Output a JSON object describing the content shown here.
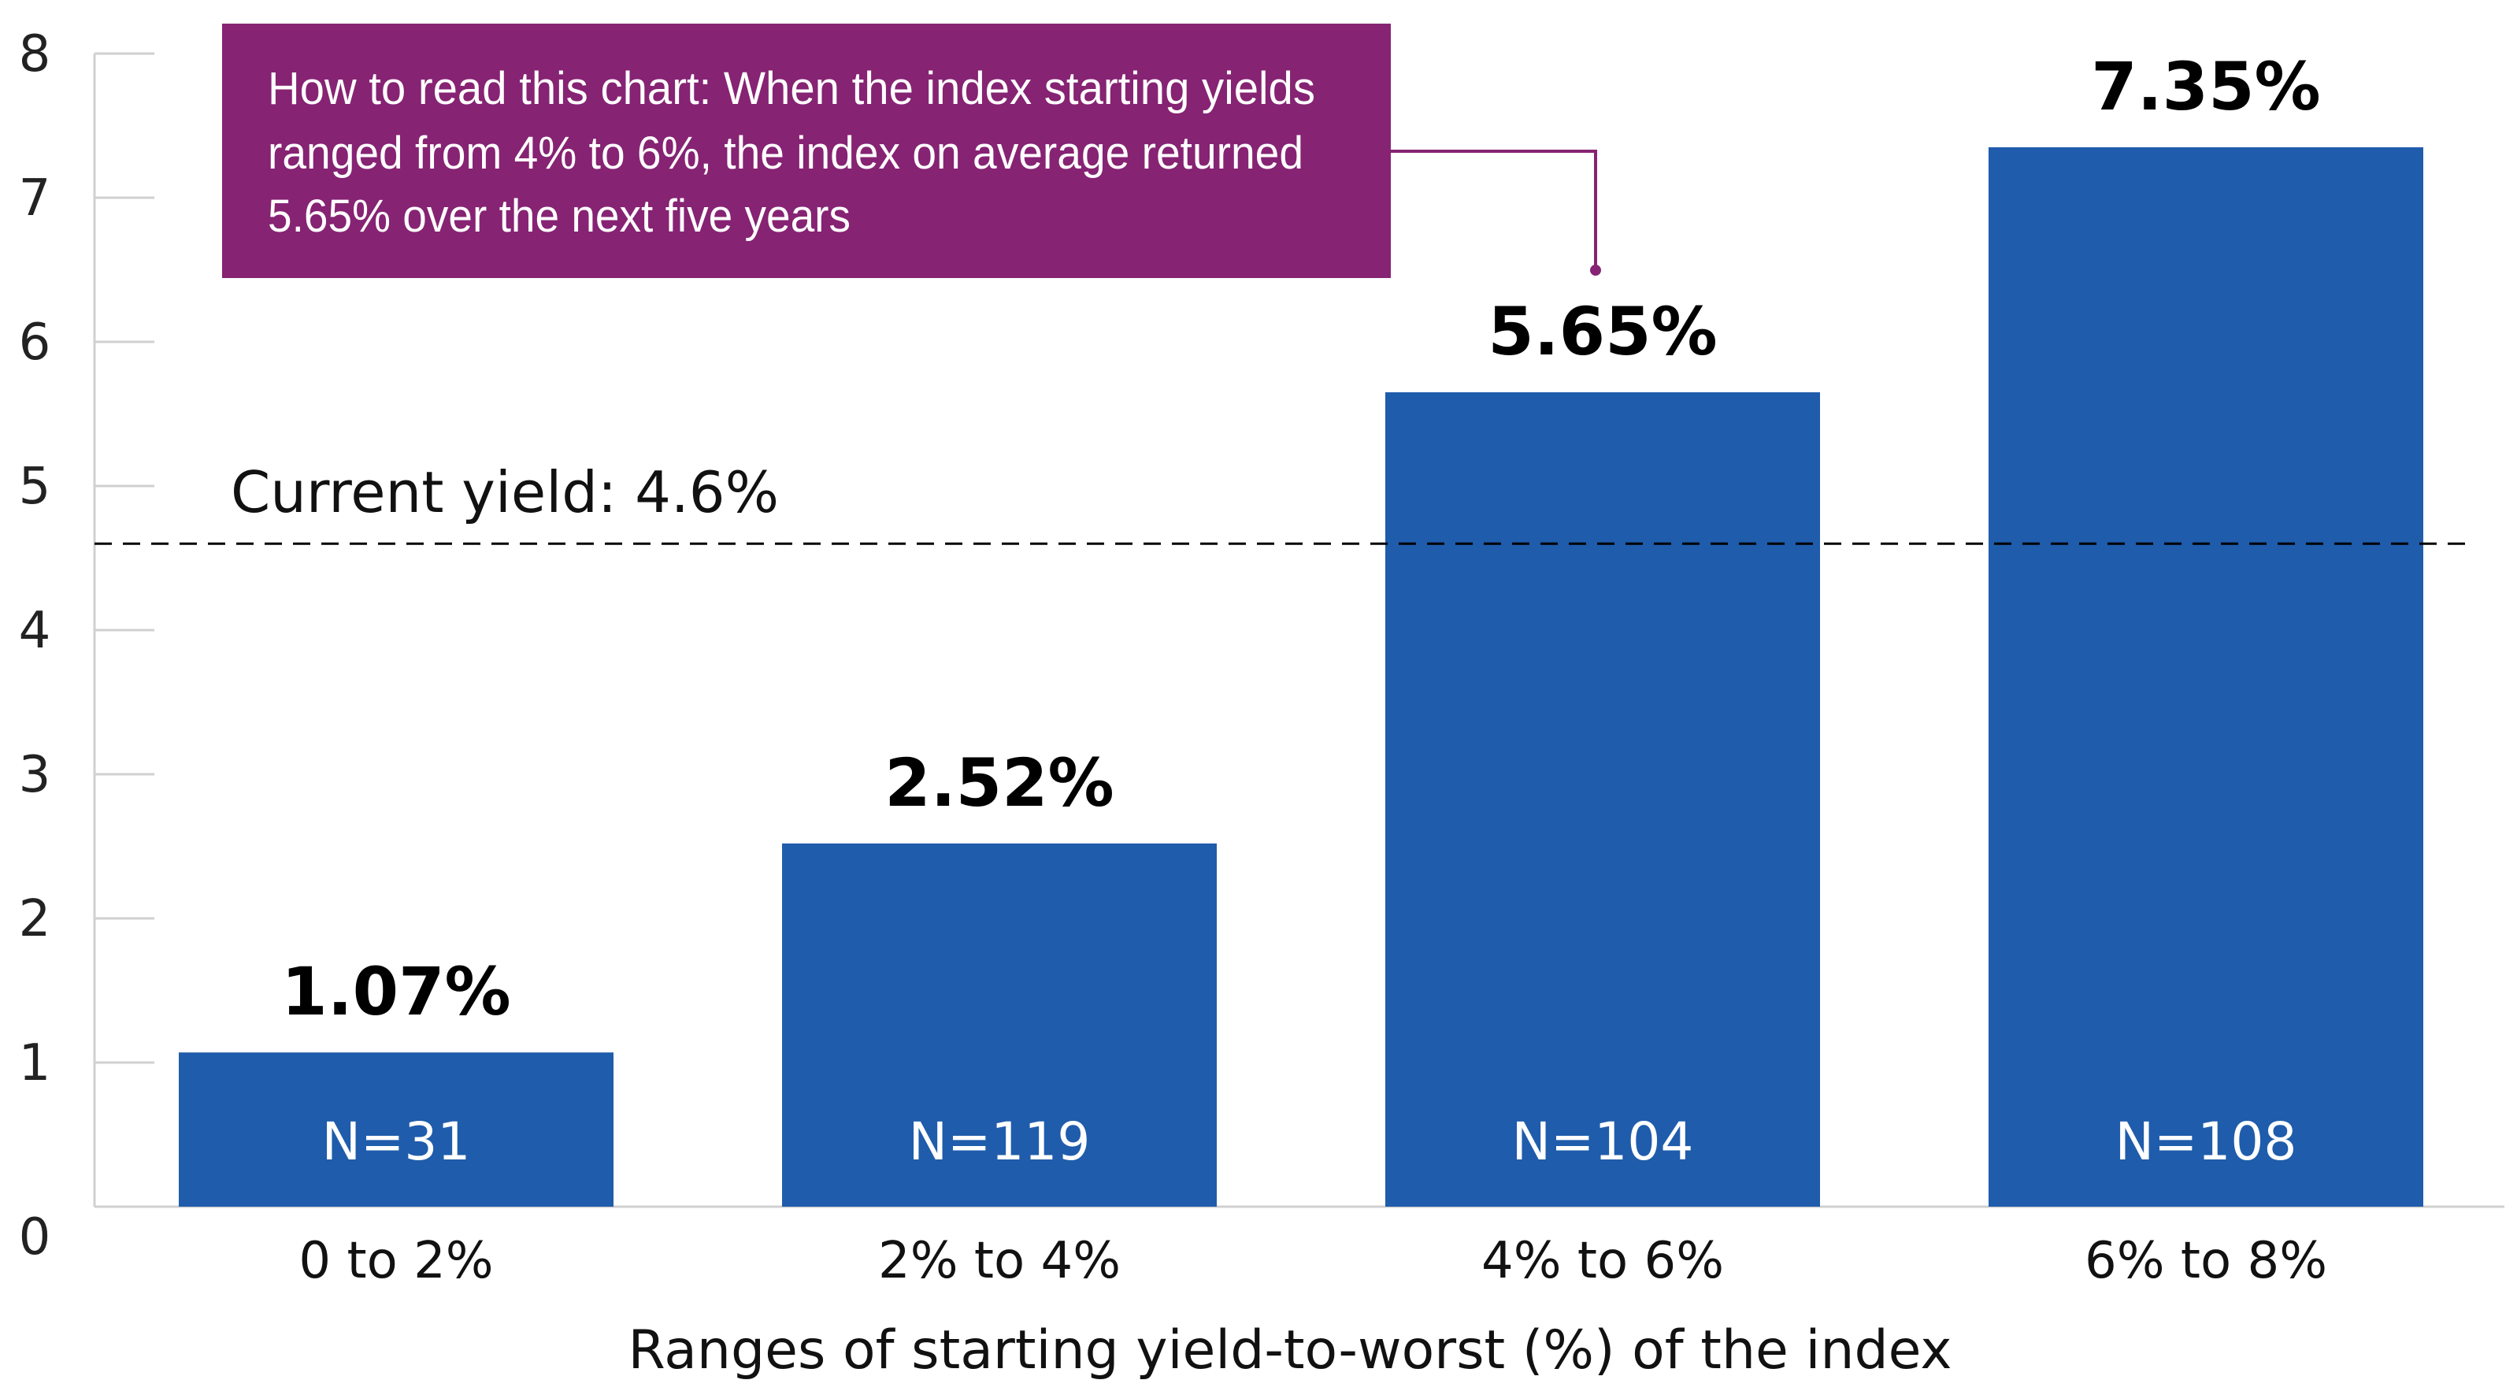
{
  "chart_data": {
    "type": "bar",
    "categories": [
      "0 to 2%",
      "2% to 4%",
      "4% to 6%",
      "6% to 8%"
    ],
    "values": [
      1.07,
      2.52,
      5.65,
      7.35
    ],
    "value_labels": [
      "1.07%",
      "2.52%",
      "5.65%",
      "7.35%"
    ],
    "n_labels": [
      "N=31",
      "N=119",
      "N=104",
      "N=108"
    ],
    "xlabel": "Ranges of starting yield-to-worst (%) of the index",
    "ylabel": "",
    "ylim": [
      0,
      8
    ],
    "yticks": [
      "0",
      "1",
      "2",
      "3",
      "4",
      "5",
      "6",
      "7",
      "8"
    ],
    "grid": false,
    "reference_line": {
      "value": 4.6,
      "label": "Current yield: 4.6%",
      "style": "dashed"
    },
    "annotation": {
      "lines": [
        "How to read this chart: When the index starting yields",
        "ranged from 4% to 6%, the index on average returned",
        "5.65% over the next five years"
      ],
      "target_category": "4% to 6%"
    },
    "colors": {
      "bar": "#1f5cab",
      "annotation_box": "#862373",
      "reference_line": "#000000",
      "axis": "#d0d0d0"
    }
  }
}
